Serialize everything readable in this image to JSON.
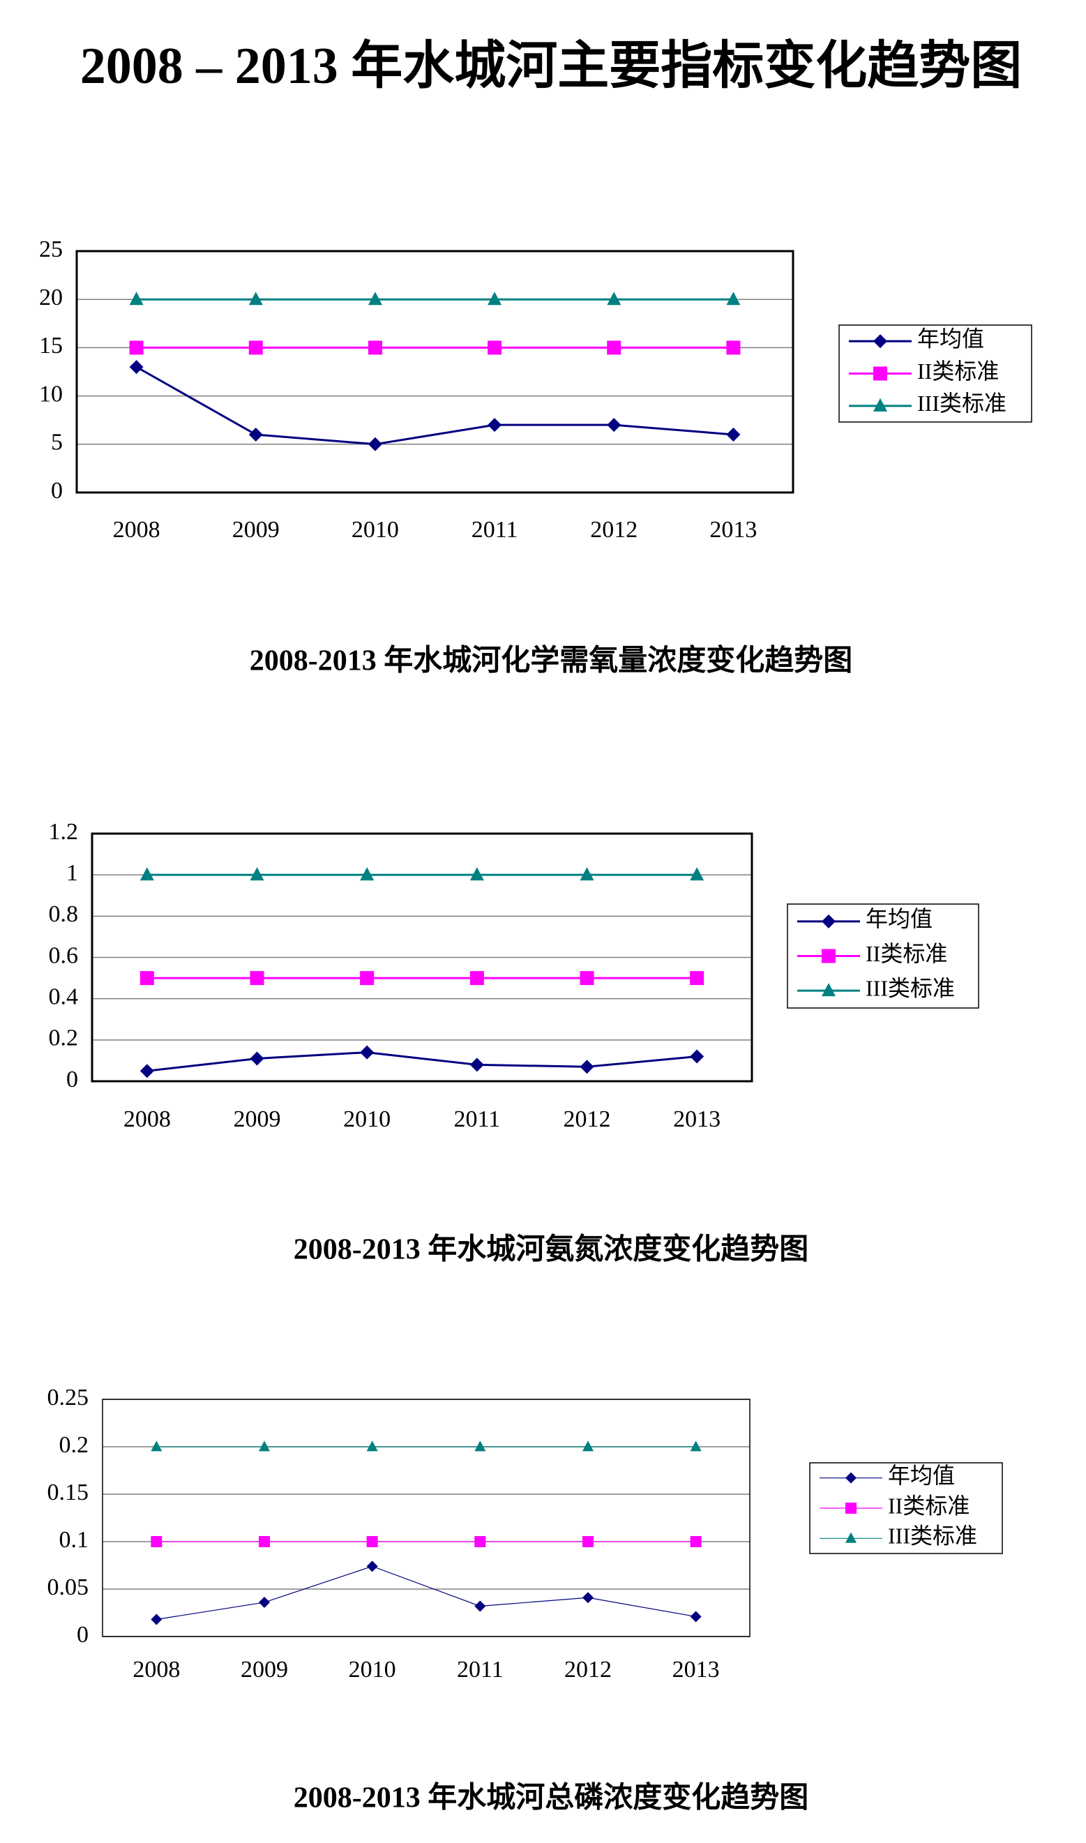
{
  "title": "2008 – 2013 年水城河主要指标变化趋势图",
  "chart_data": [
    {
      "type": "line",
      "title": "2008-2013 年水城河化学需氧量浓度变化趋势图",
      "categories": [
        "2008",
        "2009",
        "2010",
        "2011",
        "2012",
        "2013"
      ],
      "series": [
        {
          "name": "年均值",
          "color": "#000080",
          "marker": "diamond",
          "values": [
            13,
            6,
            5,
            7,
            7,
            6
          ]
        },
        {
          "name": "II类标准",
          "color": "#ff00ff",
          "marker": "square",
          "values": [
            15,
            15,
            15,
            15,
            15,
            15
          ]
        },
        {
          "name": "III类标准",
          "color": "#008080",
          "marker": "triangle",
          "values": [
            20,
            20,
            20,
            20,
            20,
            20
          ]
        }
      ],
      "ylim": [
        0,
        25
      ],
      "yticks": [
        0,
        5,
        10,
        15,
        20,
        25
      ],
      "grid": true,
      "legend": "right"
    },
    {
      "type": "line",
      "title": "2008-2013 年水城河氨氮浓度变化趋势图",
      "categories": [
        "2008",
        "2009",
        "2010",
        "2011",
        "2012",
        "2013"
      ],
      "series": [
        {
          "name": "年均值",
          "color": "#000080",
          "marker": "diamond",
          "values": [
            0.05,
            0.11,
            0.14,
            0.08,
            0.07,
            0.12
          ]
        },
        {
          "name": "II类标准",
          "color": "#ff00ff",
          "marker": "square",
          "values": [
            0.5,
            0.5,
            0.5,
            0.5,
            0.5,
            0.5
          ]
        },
        {
          "name": "III类标准",
          "color": "#008080",
          "marker": "triangle",
          "values": [
            1,
            1,
            1,
            1,
            1,
            1
          ]
        }
      ],
      "ylim": [
        0,
        1.2
      ],
      "yticks": [
        0,
        0.2,
        0.4,
        0.6,
        0.8,
        1,
        1.2
      ],
      "grid": true,
      "legend": "right"
    },
    {
      "type": "line",
      "title": "2008-2013 年水城河总磷浓度变化趋势图",
      "categories": [
        "2008",
        "2009",
        "2010",
        "2011",
        "2012",
        "2013"
      ],
      "series": [
        {
          "name": "年均值",
          "color": "#000080",
          "marker": "diamond",
          "values": [
            0.018,
            0.036,
            0.074,
            0.032,
            0.041,
            0.021
          ]
        },
        {
          "name": "II类标准",
          "color": "#ff00ff",
          "marker": "square",
          "values": [
            0.1,
            0.1,
            0.1,
            0.1,
            0.1,
            0.1
          ]
        },
        {
          "name": "III类标准",
          "color": "#008080",
          "marker": "triangle",
          "values": [
            0.2,
            0.2,
            0.2,
            0.2,
            0.2,
            0.2
          ]
        }
      ],
      "ylim": [
        0,
        0.25
      ],
      "yticks": [
        0,
        0.05,
        0.1,
        0.15,
        0.2,
        0.25
      ],
      "grid": true,
      "legend": "right"
    }
  ]
}
